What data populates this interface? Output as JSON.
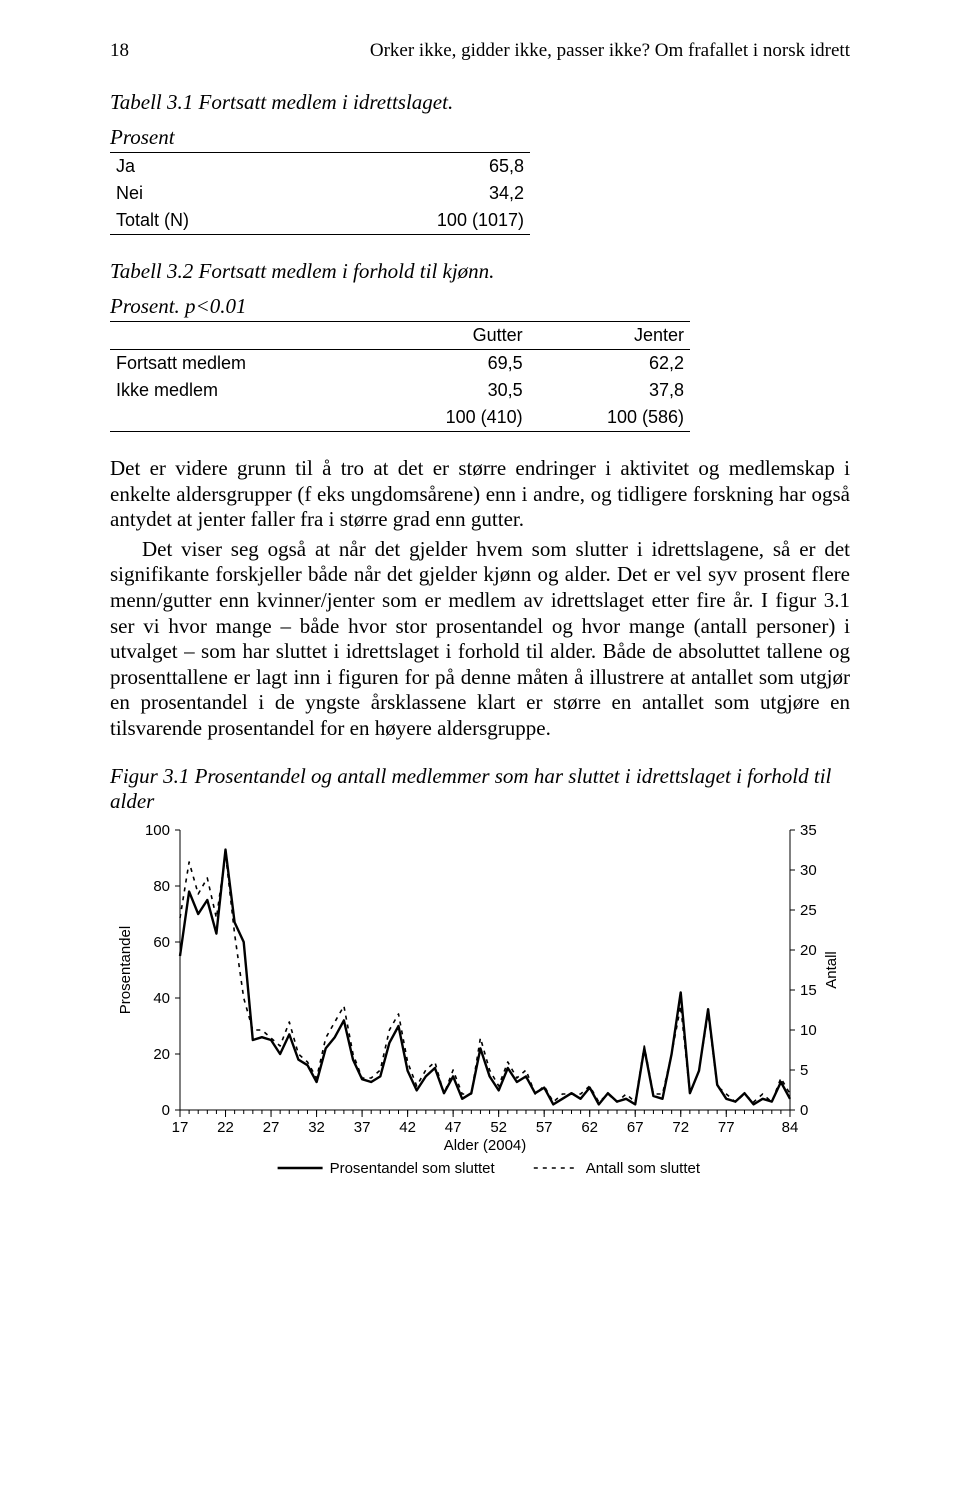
{
  "header": {
    "page_number": "18",
    "running_title": "Orker ikke, gidder ikke, passer ikke? Om frafallet i norsk idrett"
  },
  "table1": {
    "caption": "Tabell 3.1 Fortsatt medlem i idrettslaget.",
    "subhead": "Prosent",
    "rows": [
      {
        "label": "Ja",
        "value": "65,8"
      },
      {
        "label": "Nei",
        "value": "34,2"
      },
      {
        "label": "Totalt (N)",
        "value": "100 (1017)"
      }
    ]
  },
  "table2": {
    "caption": "Tabell 3.2 Fortsatt medlem i forhold til kjønn.",
    "subhead": "Prosent. p<0.01",
    "col_headers": [
      "",
      "Gutter",
      "Jenter"
    ],
    "rows": [
      {
        "label": "Fortsatt medlem",
        "c1": "69,5",
        "c2": "62,2"
      },
      {
        "label": "Ikke medlem",
        "c1": "30,5",
        "c2": "37,8"
      },
      {
        "label": "",
        "c1": "100 (410)",
        "c2": "100 (586)"
      }
    ]
  },
  "paragraphs": {
    "p1": "Det er videre grunn til å tro at det er større endringer i aktivitet og medlemskap i enkelte aldersgrupper (f eks ungdomsårene) enn i andre, og tidligere forskning har også antydet at jenter faller fra i større grad enn gutter.",
    "p2": "Det viser seg også at når det gjelder hvem som slutter i idrettslagene, så er det signifikante forskjeller både når det gjelder kjønn og alder. Det er vel syv prosent flere menn/gutter enn kvinner/jenter som er medlem av idrettslaget etter fire år. I figur 3.1 ser vi hvor mange – både hvor stor prosentandel og hvor mange (antall personer) i utvalget – som har sluttet i idrettslaget i forhold til alder. Både de absoluttet tallene og prosenttallene er lagt inn i figuren for på denne måten å illustrere at antallet som utgjør en prosentandel i de yngste årsklassene klart er større en antallet som utgjøre en tilsvarende prosentandel for en høyere aldersgruppe."
  },
  "figure": {
    "caption": "Figur 3.1 Prosentandel og antall medlemmer som har sluttet i idrettslaget i forhold til alder",
    "y_left": {
      "label": "Prosentandel",
      "min": 0,
      "max": 100,
      "step": 20
    },
    "y_right": {
      "label": "Antall",
      "min": 0,
      "max": 35,
      "step": 5
    },
    "x": {
      "label": "Alder (2004)",
      "ticks": [
        17,
        22,
        27,
        32,
        37,
        42,
        47,
        52,
        57,
        62,
        67,
        72,
        77,
        84
      ]
    },
    "legend": {
      "solid": "Prosentandel som sluttet",
      "dashed": "Antall som sluttet"
    },
    "colors": {
      "line": "#000000",
      "axis": "#000000",
      "background": "#ffffff"
    },
    "line_width_solid": 2.4,
    "line_width_dashed": 1.6,
    "dash_pattern": "4,5",
    "series_solid_pct": [
      55,
      78,
      70,
      75,
      63,
      93,
      67,
      60,
      25,
      26,
      25,
      20,
      27,
      18,
      16,
      10,
      22,
      26,
      32,
      18,
      11,
      10,
      12,
      24,
      30,
      14,
      7,
      12,
      15,
      6,
      12,
      4,
      6,
      22,
      12,
      7,
      15,
      10,
      12,
      6,
      8,
      2,
      4,
      6,
      4,
      8,
      2,
      6,
      3,
      4,
      2,
      22,
      5,
      4,
      20,
      42,
      6,
      14,
      36,
      9,
      4,
      3,
      6,
      2,
      4,
      3,
      10,
      4
    ],
    "series_dashed_cnt": [
      24,
      31,
      27,
      29,
      24,
      32,
      22,
      14,
      10,
      10,
      9,
      8,
      11,
      7,
      6,
      4,
      9,
      11,
      13,
      7,
      4,
      4,
      5,
      10,
      12,
      6,
      3,
      5,
      6,
      2,
      5,
      2,
      2,
      9,
      5,
      3,
      6,
      4,
      5,
      2,
      3,
      1,
      2,
      2,
      2,
      3,
      1,
      2,
      1,
      2,
      1,
      8,
      2,
      2,
      7,
      13,
      2,
      5,
      12,
      3,
      2,
      1,
      2,
      1,
      2,
      1,
      4,
      2
    ]
  }
}
